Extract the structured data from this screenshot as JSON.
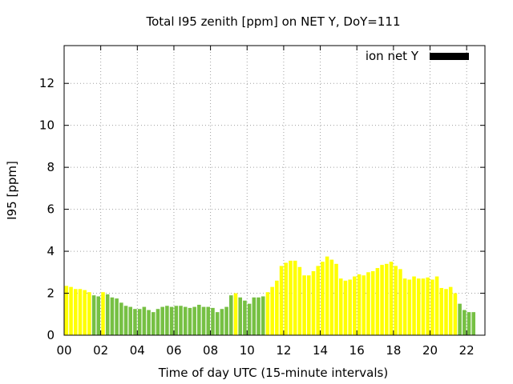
{
  "chart_data": {
    "type": "bar",
    "title": "Total I95 zenith [ppm] on NET Y, DoY=111",
    "xlabel": "Time of day UTC (15-minute intervals)",
    "ylabel": "I95 [ppm]",
    "xlim": [
      0,
      23
    ],
    "ylim": [
      0,
      13.8
    ],
    "xticks": [
      0,
      2,
      4,
      6,
      8,
      10,
      12,
      14,
      16,
      18,
      20,
      22
    ],
    "xtick_labels": [
      "00",
      "02",
      "04",
      "06",
      "08",
      "10",
      "12",
      "14",
      "16",
      "18",
      "20",
      "22"
    ],
    "yticks": [
      0,
      2,
      4,
      6,
      8,
      10,
      12
    ],
    "ytick_labels": [
      "0",
      "2",
      "4",
      "6",
      "8",
      "10",
      "12"
    ],
    "grid": true,
    "legend": {
      "placement": "top-right",
      "entries": [
        {
          "label": "ion net Y",
          "color": "#000000"
        }
      ]
    },
    "colors": {
      "yellow": "#ffff00",
      "green": "#76c043"
    },
    "bar_width_hours": 0.2,
    "bars": [
      {
        "t": 0.125,
        "v": 2.35,
        "c": "yellow"
      },
      {
        "t": 0.375,
        "v": 2.3,
        "c": "yellow"
      },
      {
        "t": 0.625,
        "v": 2.2,
        "c": "yellow"
      },
      {
        "t": 0.875,
        "v": 2.2,
        "c": "yellow"
      },
      {
        "t": 1.125,
        "v": 2.15,
        "c": "yellow"
      },
      {
        "t": 1.375,
        "v": 2.05,
        "c": "yellow"
      },
      {
        "t": 1.625,
        "v": 1.9,
        "c": "green"
      },
      {
        "t": 1.875,
        "v": 1.85,
        "c": "green"
      },
      {
        "t": 2.125,
        "v": 2.05,
        "c": "yellow"
      },
      {
        "t": 2.375,
        "v": 1.95,
        "c": "green"
      },
      {
        "t": 2.625,
        "v": 1.8,
        "c": "green"
      },
      {
        "t": 2.875,
        "v": 1.75,
        "c": "green"
      },
      {
        "t": 3.125,
        "v": 1.55,
        "c": "green"
      },
      {
        "t": 3.375,
        "v": 1.4,
        "c": "green"
      },
      {
        "t": 3.625,
        "v": 1.35,
        "c": "green"
      },
      {
        "t": 3.875,
        "v": 1.25,
        "c": "green"
      },
      {
        "t": 4.125,
        "v": 1.25,
        "c": "green"
      },
      {
        "t": 4.375,
        "v": 1.35,
        "c": "green"
      },
      {
        "t": 4.625,
        "v": 1.2,
        "c": "green"
      },
      {
        "t": 4.875,
        "v": 1.1,
        "c": "green"
      },
      {
        "t": 5.125,
        "v": 1.25,
        "c": "green"
      },
      {
        "t": 5.375,
        "v": 1.35,
        "c": "green"
      },
      {
        "t": 5.625,
        "v": 1.4,
        "c": "green"
      },
      {
        "t": 5.875,
        "v": 1.35,
        "c": "green"
      },
      {
        "t": 6.125,
        "v": 1.4,
        "c": "green"
      },
      {
        "t": 6.375,
        "v": 1.4,
        "c": "green"
      },
      {
        "t": 6.625,
        "v": 1.35,
        "c": "green"
      },
      {
        "t": 6.875,
        "v": 1.3,
        "c": "green"
      },
      {
        "t": 7.125,
        "v": 1.35,
        "c": "green"
      },
      {
        "t": 7.375,
        "v": 1.45,
        "c": "green"
      },
      {
        "t": 7.625,
        "v": 1.35,
        "c": "green"
      },
      {
        "t": 7.875,
        "v": 1.35,
        "c": "green"
      },
      {
        "t": 8.125,
        "v": 1.3,
        "c": "green"
      },
      {
        "t": 8.375,
        "v": 1.1,
        "c": "green"
      },
      {
        "t": 8.625,
        "v": 1.25,
        "c": "green"
      },
      {
        "t": 8.875,
        "v": 1.35,
        "c": "green"
      },
      {
        "t": 9.125,
        "v": 1.9,
        "c": "green"
      },
      {
        "t": 9.375,
        "v": 2.0,
        "c": "yellow"
      },
      {
        "t": 9.625,
        "v": 1.8,
        "c": "green"
      },
      {
        "t": 9.875,
        "v": 1.65,
        "c": "green"
      },
      {
        "t": 10.125,
        "v": 1.5,
        "c": "green"
      },
      {
        "t": 10.375,
        "v": 1.8,
        "c": "green"
      },
      {
        "t": 10.625,
        "v": 1.8,
        "c": "green"
      },
      {
        "t": 10.875,
        "v": 1.85,
        "c": "green"
      },
      {
        "t": 11.125,
        "v": 2.05,
        "c": "yellow"
      },
      {
        "t": 11.375,
        "v": 2.3,
        "c": "yellow"
      },
      {
        "t": 11.625,
        "v": 2.6,
        "c": "yellow"
      },
      {
        "t": 11.875,
        "v": 3.3,
        "c": "yellow"
      },
      {
        "t": 12.125,
        "v": 3.45,
        "c": "yellow"
      },
      {
        "t": 12.375,
        "v": 3.55,
        "c": "yellow"
      },
      {
        "t": 12.625,
        "v": 3.55,
        "c": "yellow"
      },
      {
        "t": 12.875,
        "v": 3.25,
        "c": "yellow"
      },
      {
        "t": 13.125,
        "v": 2.85,
        "c": "yellow"
      },
      {
        "t": 13.375,
        "v": 2.85,
        "c": "yellow"
      },
      {
        "t": 13.625,
        "v": 3.05,
        "c": "yellow"
      },
      {
        "t": 13.875,
        "v": 3.3,
        "c": "yellow"
      },
      {
        "t": 14.125,
        "v": 3.5,
        "c": "yellow"
      },
      {
        "t": 14.375,
        "v": 3.75,
        "c": "yellow"
      },
      {
        "t": 14.625,
        "v": 3.6,
        "c": "yellow"
      },
      {
        "t": 14.875,
        "v": 3.4,
        "c": "yellow"
      },
      {
        "t": 15.125,
        "v": 2.7,
        "c": "yellow"
      },
      {
        "t": 15.375,
        "v": 2.6,
        "c": "yellow"
      },
      {
        "t": 15.625,
        "v": 2.65,
        "c": "yellow"
      },
      {
        "t": 15.875,
        "v": 2.8,
        "c": "yellow"
      },
      {
        "t": 16.125,
        "v": 2.9,
        "c": "yellow"
      },
      {
        "t": 16.375,
        "v": 2.85,
        "c": "yellow"
      },
      {
        "t": 16.625,
        "v": 3.0,
        "c": "yellow"
      },
      {
        "t": 16.875,
        "v": 3.05,
        "c": "yellow"
      },
      {
        "t": 17.125,
        "v": 3.2,
        "c": "yellow"
      },
      {
        "t": 17.375,
        "v": 3.35,
        "c": "yellow"
      },
      {
        "t": 17.625,
        "v": 3.4,
        "c": "yellow"
      },
      {
        "t": 17.875,
        "v": 3.5,
        "c": "yellow"
      },
      {
        "t": 18.125,
        "v": 3.3,
        "c": "yellow"
      },
      {
        "t": 18.375,
        "v": 3.15,
        "c": "yellow"
      },
      {
        "t": 18.625,
        "v": 2.7,
        "c": "yellow"
      },
      {
        "t": 18.875,
        "v": 2.65,
        "c": "yellow"
      },
      {
        "t": 19.125,
        "v": 2.8,
        "c": "yellow"
      },
      {
        "t": 19.375,
        "v": 2.7,
        "c": "yellow"
      },
      {
        "t": 19.625,
        "v": 2.7,
        "c": "yellow"
      },
      {
        "t": 19.875,
        "v": 2.75,
        "c": "yellow"
      },
      {
        "t": 20.125,
        "v": 2.65,
        "c": "yellow"
      },
      {
        "t": 20.375,
        "v": 2.8,
        "c": "yellow"
      },
      {
        "t": 20.625,
        "v": 2.25,
        "c": "yellow"
      },
      {
        "t": 20.875,
        "v": 2.2,
        "c": "yellow"
      },
      {
        "t": 21.125,
        "v": 2.3,
        "c": "yellow"
      },
      {
        "t": 21.375,
        "v": 2.0,
        "c": "yellow"
      },
      {
        "t": 21.625,
        "v": 1.5,
        "c": "green"
      },
      {
        "t": 21.875,
        "v": 1.2,
        "c": "green"
      },
      {
        "t": 22.125,
        "v": 1.1,
        "c": "green"
      },
      {
        "t": 22.375,
        "v": 1.1,
        "c": "green"
      }
    ]
  }
}
